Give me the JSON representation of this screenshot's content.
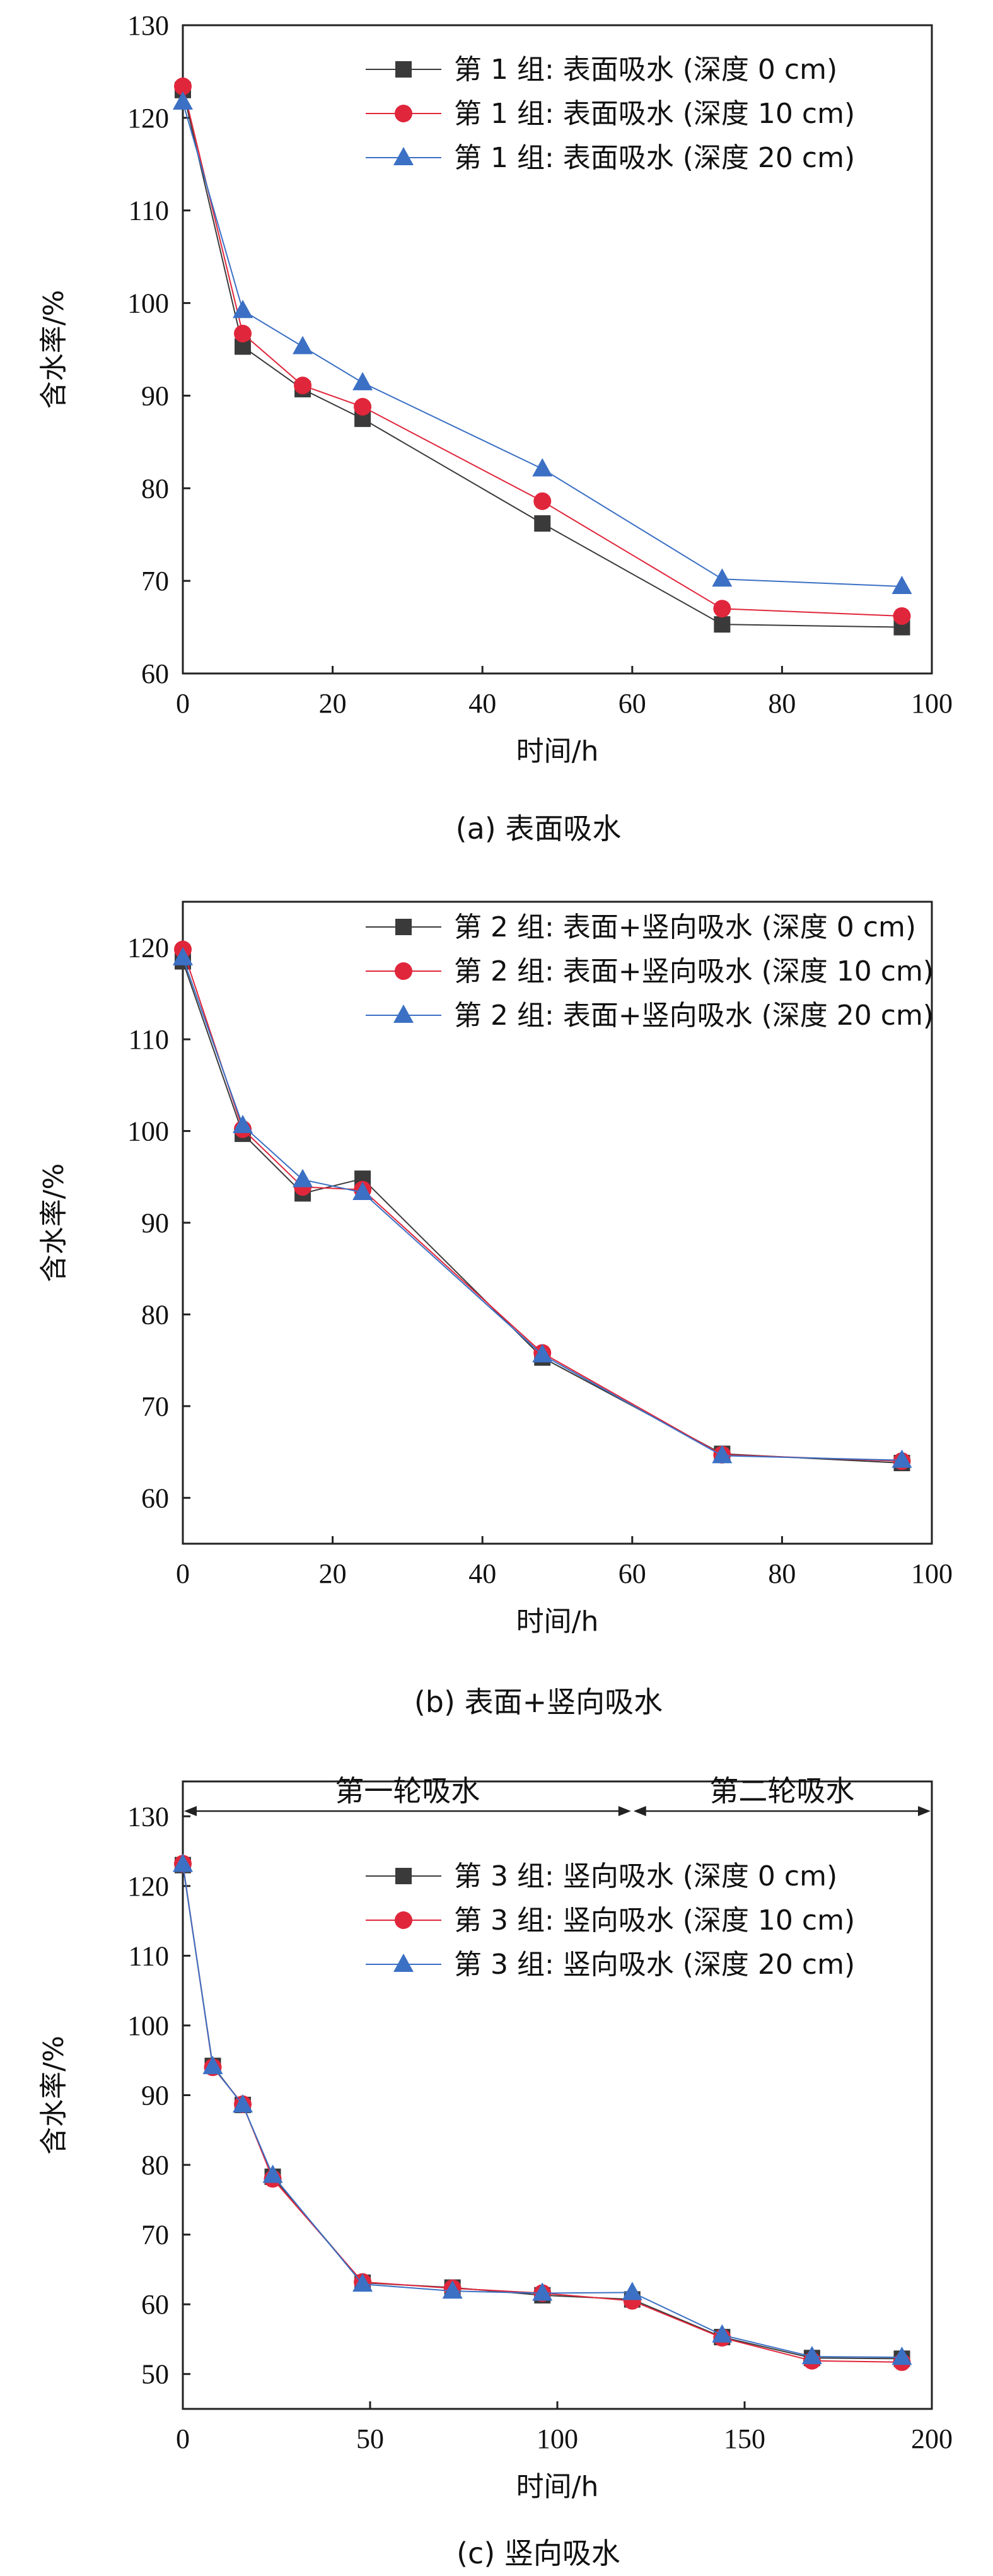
{
  "colors": {
    "s0": "#3a3a3a",
    "s10": "#e0263b",
    "s20": "#3b70c4",
    "axis": "#222222"
  },
  "chart_data": [
    {
      "type": "line",
      "caption": "(a) 表面吸水",
      "xlabel": "时间/h",
      "ylabel": "含水率/%",
      "xlim": [
        0,
        100
      ],
      "ylim": [
        60,
        130
      ],
      "xticks": [
        0,
        20,
        40,
        60,
        80,
        100
      ],
      "yticks": [
        60,
        70,
        80,
        90,
        100,
        110,
        120,
        130
      ],
      "legend_position": "top-right",
      "phases": [],
      "series": [
        {
          "name": "第 1 组: 表面吸水 (深度 0 cm)",
          "marker": "square",
          "color": "#3a3a3a",
          "x": [
            0,
            8,
            16,
            24,
            48,
            72,
            96
          ],
          "y": [
            123.0,
            95.3,
            90.7,
            87.5,
            76.2,
            65.3,
            65.0
          ]
        },
        {
          "name": "第 1 组: 表面吸水 (深度 10 cm)",
          "marker": "circle",
          "color": "#e0263b",
          "x": [
            0,
            8,
            16,
            24,
            48,
            72,
            96
          ],
          "y": [
            123.4,
            96.7,
            91.1,
            88.8,
            78.6,
            67.0,
            66.2
          ]
        },
        {
          "name": "第 1 组: 表面吸水 (深度 20 cm)",
          "marker": "triangle",
          "color": "#3b70c4",
          "x": [
            0,
            8,
            16,
            24,
            48,
            72,
            96
          ],
          "y": [
            121.7,
            99.2,
            95.3,
            91.4,
            82.1,
            70.2,
            69.4
          ]
        }
      ]
    },
    {
      "type": "line",
      "caption": "(b) 表面+竖向吸水",
      "xlabel": "时间/h",
      "ylabel": "含水率/%",
      "xlim": [
        0,
        100
      ],
      "ylim": [
        55,
        125
      ],
      "xticks": [
        0,
        20,
        40,
        60,
        80,
        100
      ],
      "yticks": [
        60,
        70,
        80,
        90,
        100,
        110,
        120
      ],
      "legend_position": "top-right",
      "phases": [],
      "series": [
        {
          "name": "第 2 组: 表面+竖向吸水 (深度 0 cm)",
          "marker": "square",
          "color": "#3a3a3a",
          "x": [
            0,
            8,
            16,
            24,
            48,
            72,
            96
          ],
          "y": [
            118.5,
            99.7,
            93.2,
            94.8,
            75.3,
            64.8,
            63.8
          ]
        },
        {
          "name": "第 2 组: 表面+竖向吸水 (深度 10 cm)",
          "marker": "circle",
          "color": "#e0263b",
          "x": [
            0,
            8,
            16,
            24,
            48,
            72,
            96
          ],
          "y": [
            119.8,
            100.2,
            93.9,
            93.6,
            75.8,
            64.7,
            64.0
          ]
        },
        {
          "name": "第 2 组: 表面+竖向吸水 (深度 20 cm)",
          "marker": "triangle",
          "color": "#3b70c4",
          "x": [
            0,
            8,
            16,
            24,
            48,
            72,
            96
          ],
          "y": [
            118.9,
            100.6,
            94.7,
            93.3,
            75.6,
            64.6,
            64.1
          ]
        }
      ]
    },
    {
      "type": "line",
      "caption": "(c) 竖向吸水",
      "xlabel": "时间/h",
      "ylabel": "含水率/%",
      "xlim": [
        0,
        200
      ],
      "ylim": [
        45,
        135
      ],
      "xticks": [
        0,
        50,
        100,
        150,
        200
      ],
      "yticks": [
        50,
        60,
        70,
        80,
        90,
        100,
        110,
        120,
        130
      ],
      "legend_position": "top-right",
      "phases": [
        {
          "label": "第一轮吸水",
          "from": 0,
          "to": 120
        },
        {
          "label": "第二轮吸水",
          "from": 120,
          "to": 200
        }
      ],
      "series": [
        {
          "name": "第 3 组: 竖向吸水 (深度 0 cm)",
          "marker": "square",
          "color": "#3a3a3a",
          "x": [
            0,
            8,
            16,
            24,
            48,
            72,
            96,
            120,
            144,
            168,
            192
          ],
          "y": [
            123.0,
            94.2,
            88.6,
            78.3,
            63.1,
            62.4,
            61.3,
            60.7,
            55.3,
            52.3,
            52.2
          ]
        },
        {
          "name": "第 3 组: 竖向吸水 (深度 10 cm)",
          "marker": "circle",
          "color": "#e0263b",
          "x": [
            0,
            8,
            16,
            24,
            48,
            72,
            96,
            120,
            144,
            168,
            192
          ],
          "y": [
            123.2,
            94.0,
            88.7,
            78.0,
            63.2,
            62.3,
            61.6,
            60.5,
            55.2,
            51.9,
            51.7
          ]
        },
        {
          "name": "第 3 组: 竖向吸水 (深度 20 cm)",
          "marker": "triangle",
          "color": "#3b70c4",
          "x": [
            0,
            8,
            16,
            24,
            48,
            72,
            96,
            120,
            144,
            168,
            192
          ],
          "y": [
            123.1,
            94.1,
            88.6,
            78.5,
            62.9,
            61.9,
            61.6,
            61.7,
            55.6,
            52.5,
            52.4
          ]
        }
      ]
    }
  ]
}
